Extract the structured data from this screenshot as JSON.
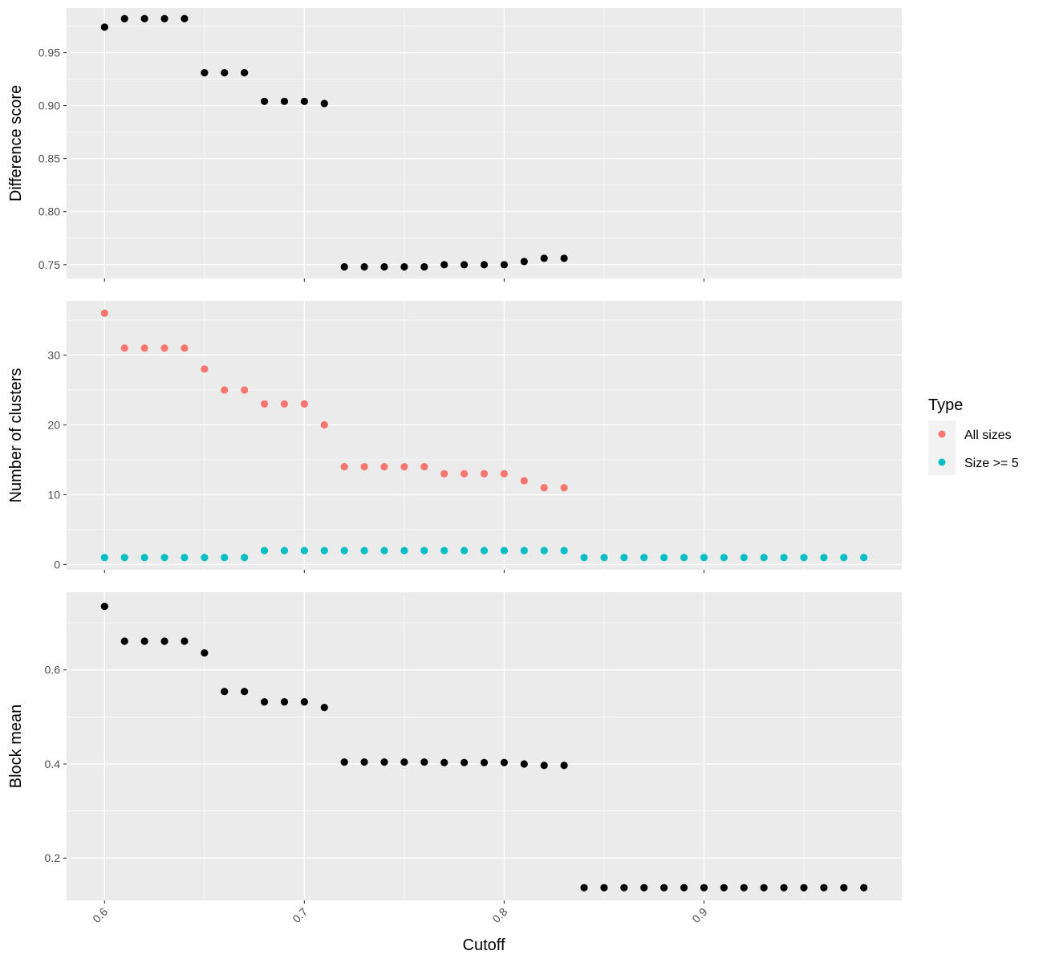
{
  "colors": {
    "panel_bg": "#ebebeb",
    "grid_major": "#ffffff",
    "black_points": "#000000",
    "all_sizes": "#f8766d",
    "size_ge5": "#00bfc4",
    "legend_key_bg": "#f2f2f2"
  },
  "legend": {
    "title": "Type",
    "items": [
      {
        "label": "All sizes",
        "color": "#f8766d"
      },
      {
        "label": "Size >= 5",
        "color": "#00bfc4"
      }
    ]
  },
  "chart_data": [
    {
      "type": "scatter",
      "ylabel": "Difference score",
      "xlim": [
        0.581,
        0.999
      ],
      "ylim": [
        0.737,
        0.992
      ],
      "yticks": [
        0.75,
        0.8,
        0.85,
        0.9,
        0.95
      ],
      "ytick_labels": [
        "0.75",
        "0.80",
        "0.85",
        "0.90",
        "0.95"
      ],
      "series": [
        {
          "color": "#000000",
          "x": [
            0.6,
            0.61,
            0.62,
            0.63,
            0.64,
            0.65,
            0.66,
            0.67,
            0.68,
            0.69,
            0.7,
            0.71,
            0.72,
            0.73,
            0.74,
            0.75,
            0.76,
            0.77,
            0.78,
            0.79,
            0.8,
            0.81,
            0.82,
            0.83
          ],
          "y": [
            0.974,
            0.982,
            0.982,
            0.982,
            0.982,
            0.931,
            0.931,
            0.931,
            0.904,
            0.904,
            0.904,
            0.902,
            0.748,
            0.748,
            0.748,
            0.748,
            0.748,
            0.75,
            0.75,
            0.75,
            0.75,
            0.753,
            0.756,
            0.756
          ]
        }
      ]
    },
    {
      "type": "scatter",
      "ylabel": "Number of clusters",
      "xlim": [
        0.581,
        0.999
      ],
      "ylim": [
        -0.75,
        37.75
      ],
      "yticks": [
        0,
        10,
        20,
        30
      ],
      "ytick_labels": [
        "0",
        "10",
        "20",
        "30"
      ],
      "series": [
        {
          "name": "All sizes",
          "color": "#f8766d",
          "x": [
            0.6,
            0.61,
            0.62,
            0.63,
            0.64,
            0.65,
            0.66,
            0.67,
            0.68,
            0.69,
            0.7,
            0.71,
            0.72,
            0.73,
            0.74,
            0.75,
            0.76,
            0.77,
            0.78,
            0.79,
            0.8,
            0.81,
            0.82,
            0.83
          ],
          "y": [
            36,
            31,
            31,
            31,
            31,
            28,
            25,
            25,
            23,
            23,
            23,
            20,
            14,
            14,
            14,
            14,
            14,
            13,
            13,
            13,
            13,
            12,
            11,
            11
          ]
        },
        {
          "name": "Size >= 5",
          "color": "#00bfc4",
          "x": [
            0.6,
            0.61,
            0.62,
            0.63,
            0.64,
            0.65,
            0.66,
            0.67,
            0.68,
            0.69,
            0.7,
            0.71,
            0.72,
            0.73,
            0.74,
            0.75,
            0.76,
            0.77,
            0.78,
            0.79,
            0.8,
            0.81,
            0.82,
            0.83,
            0.84,
            0.85,
            0.86,
            0.87,
            0.88,
            0.89,
            0.9,
            0.91,
            0.92,
            0.93,
            0.94,
            0.95,
            0.96,
            0.97,
            0.98
          ],
          "y": [
            1,
            1,
            1,
            1,
            1,
            1,
            1,
            1,
            2,
            2,
            2,
            2,
            2,
            2,
            2,
            2,
            2,
            2,
            2,
            2,
            2,
            2,
            2,
            2,
            1,
            1,
            1,
            1,
            1,
            1,
            1,
            1,
            1,
            1,
            1,
            1,
            1,
            1,
            1
          ]
        }
      ]
    },
    {
      "type": "scatter",
      "xlabel": "Cutoff",
      "ylabel": "Block mean",
      "xlim": [
        0.581,
        0.999
      ],
      "ylim": [
        0.11,
        0.765
      ],
      "yticks": [
        0.2,
        0.4,
        0.6
      ],
      "ytick_labels": [
        "0.2",
        "0.4",
        "0.6"
      ],
      "xticks": [
        0.6,
        0.7,
        0.8,
        0.9
      ],
      "xtick_labels": [
        "0.6",
        "0.7",
        "0.8",
        "0.9"
      ],
      "series": [
        {
          "color": "#000000",
          "x": [
            0.6,
            0.61,
            0.62,
            0.63,
            0.64,
            0.65,
            0.66,
            0.67,
            0.68,
            0.69,
            0.7,
            0.71,
            0.72,
            0.73,
            0.74,
            0.75,
            0.76,
            0.77,
            0.78,
            0.79,
            0.8,
            0.81,
            0.82,
            0.83,
            0.84,
            0.85,
            0.86,
            0.87,
            0.88,
            0.89,
            0.9,
            0.91,
            0.92,
            0.93,
            0.94,
            0.95,
            0.96,
            0.97,
            0.98
          ],
          "y": [
            0.735,
            0.661,
            0.661,
            0.661,
            0.661,
            0.636,
            0.554,
            0.554,
            0.532,
            0.532,
            0.532,
            0.52,
            0.404,
            0.404,
            0.404,
            0.404,
            0.404,
            0.403,
            0.403,
            0.403,
            0.403,
            0.4,
            0.397,
            0.397,
            0.137,
            0.137,
            0.137,
            0.137,
            0.137,
            0.137,
            0.137,
            0.137,
            0.137,
            0.137,
            0.137,
            0.137,
            0.137,
            0.137,
            0.137
          ]
        }
      ]
    }
  ]
}
